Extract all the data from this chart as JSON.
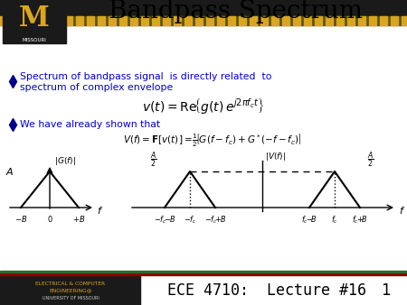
{
  "title": "Bandpass Spectrum",
  "bullet1a": "Spectrum of bandpass signal  is directly related  to",
  "bullet1b": "spectrum of complex envelope",
  "bullet2": "We have already shown that",
  "footer": "ECE 4710:  Lecture #16",
  "slide_num": "1",
  "bg_color": "#ffffff",
  "title_color": "#000000",
  "bullet_color": "#0000cc",
  "diamond_color": "#00008B",
  "gold_color": "#DAA520",
  "dark_color": "#222222",
  "footer_red": "#8B0000",
  "footer_green": "#2d6a2d"
}
